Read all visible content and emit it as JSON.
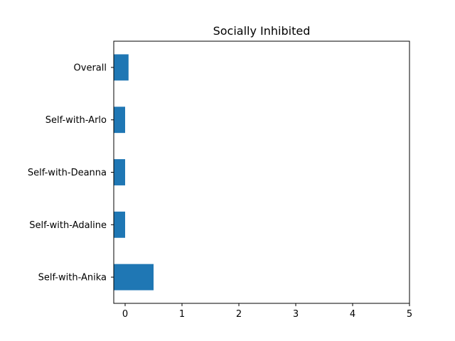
{
  "chart_data": {
    "type": "bar",
    "orientation": "horizontal",
    "title": "Socially Inhibited",
    "xlabel": "",
    "ylabel": "",
    "categories": [
      "Overall",
      "Self-with-Arlo",
      "Self-with-Deanna",
      "Self-with-Adaline",
      "Self-with-Anika"
    ],
    "values": [
      0.06,
      0,
      0,
      0,
      0.5
    ],
    "bar_start": -0.2,
    "xlim": [
      -0.2,
      5
    ],
    "xticks": [
      0,
      1,
      2,
      3,
      4,
      5
    ],
    "grid": false,
    "bar_color": "#1f77b4"
  }
}
